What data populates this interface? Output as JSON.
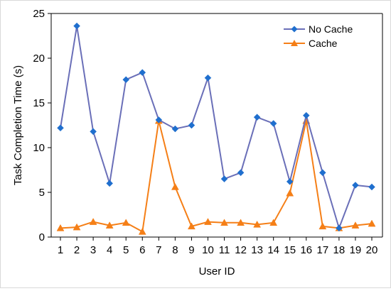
{
  "chart_data": {
    "type": "line",
    "xlabel": "User ID",
    "ylabel": "Task Completion Time (s)",
    "x": [
      1,
      2,
      3,
      4,
      5,
      6,
      7,
      8,
      9,
      10,
      11,
      12,
      13,
      14,
      15,
      16,
      17,
      18,
      19,
      20
    ],
    "x_tick_labels": [
      "1",
      "2",
      "3",
      "4",
      "5",
      "6",
      "7",
      "8",
      "9",
      "10",
      "11",
      "12",
      "13",
      "14",
      "15",
      "16",
      "17",
      "18",
      "19",
      "20"
    ],
    "ylim": [
      0,
      25
    ],
    "y_ticks": [
      0,
      5,
      10,
      15,
      20,
      25
    ],
    "y_tick_labels": [
      "0",
      "5",
      "10",
      "15",
      "20",
      "25"
    ],
    "grid": false,
    "legend_position": "top-right",
    "series": [
      {
        "name": "No Cache",
        "marker": "diamond",
        "marker_color": "#1f6fce",
        "line_color": "#6a6fb8",
        "values": [
          12.2,
          23.6,
          11.8,
          6.0,
          17.6,
          18.4,
          13.1,
          12.1,
          12.5,
          17.8,
          6.5,
          7.2,
          13.4,
          12.7,
          6.2,
          13.6,
          7.2,
          1.0,
          5.8,
          5.6
        ]
      },
      {
        "name": "Cache",
        "marker": "triangle",
        "marker_color": "#f57f17",
        "line_color": "#f57f17",
        "values": [
          1.0,
          1.1,
          1.7,
          1.3,
          1.6,
          0.6,
          13.0,
          5.6,
          1.2,
          1.7,
          1.6,
          1.6,
          1.4,
          1.6,
          4.9,
          13.0,
          1.2,
          1.0,
          1.3,
          1.5
        ]
      }
    ]
  }
}
